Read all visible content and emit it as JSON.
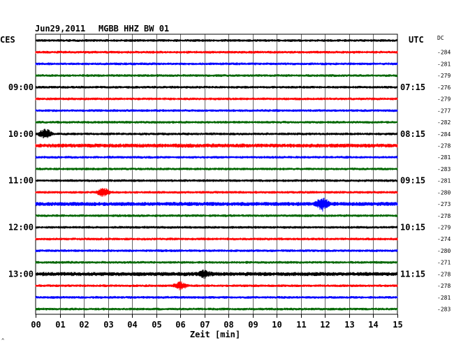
{
  "header": {
    "date": "Jun29,2011",
    "station": "MGBB HHZ BW 01",
    "left_tz": "CES",
    "right_tz": "UTC",
    "dc_label": "DC"
  },
  "chart_data": {
    "type": "line",
    "title": "Jun29,2011   MGBB HHZ BW 01",
    "xlabel": "Zeit [min]",
    "ylabel": "",
    "x_ticks": [
      "00",
      "01",
      "02",
      "03",
      "04",
      "05",
      "06",
      "07",
      "08",
      "09",
      "10",
      "11",
      "12",
      "13",
      "14",
      "15"
    ],
    "xlim": [
      0,
      15
    ],
    "grid": true,
    "series_colors": [
      "#000000",
      "#ff0000",
      "#0000ff",
      "#006600"
    ],
    "left_time_labels": [
      {
        "trace": 4,
        "label": "09:00"
      },
      {
        "trace": 8,
        "label": "10:00"
      },
      {
        "trace": 12,
        "label": "11:00"
      },
      {
        "trace": 16,
        "label": "12:00"
      },
      {
        "trace": 20,
        "label": "13:00"
      }
    ],
    "right_time_labels": [
      {
        "trace": 4,
        "label": "07:15"
      },
      {
        "trace": 8,
        "label": "08:15"
      },
      {
        "trace": 12,
        "label": "09:15"
      },
      {
        "trace": 16,
        "label": "10:15"
      },
      {
        "trace": 20,
        "label": "11:15"
      }
    ],
    "dc_offsets": [
      -284,
      -281,
      -279,
      -276,
      -279,
      -277,
      -282,
      -284,
      -278,
      -281,
      -283,
      -281,
      -280,
      -273,
      -278,
      -279,
      -274,
      -280,
      -271,
      -278,
      -278,
      -281,
      -283
    ],
    "trace_amplitude": [
      2,
      2,
      2,
      2,
      2,
      2,
      2,
      2,
      2,
      3,
      2,
      2,
      2,
      2,
      3,
      2,
      2,
      2,
      2,
      2,
      3,
      2,
      2,
      2
    ],
    "events": [
      {
        "trace": 8,
        "minute": 0.4,
        "amplitude": 7
      },
      {
        "trace": 13,
        "minute": 2.8,
        "amplitude": 6
      },
      {
        "trace": 14,
        "minute": 11.9,
        "amplitude": 8
      },
      {
        "trace": 21,
        "minute": 6.0,
        "amplitude": 5
      },
      {
        "trace": 20,
        "minute": 7.0,
        "amplitude": 4
      }
    ]
  },
  "footer": {
    "corner_mark": "^"
  }
}
